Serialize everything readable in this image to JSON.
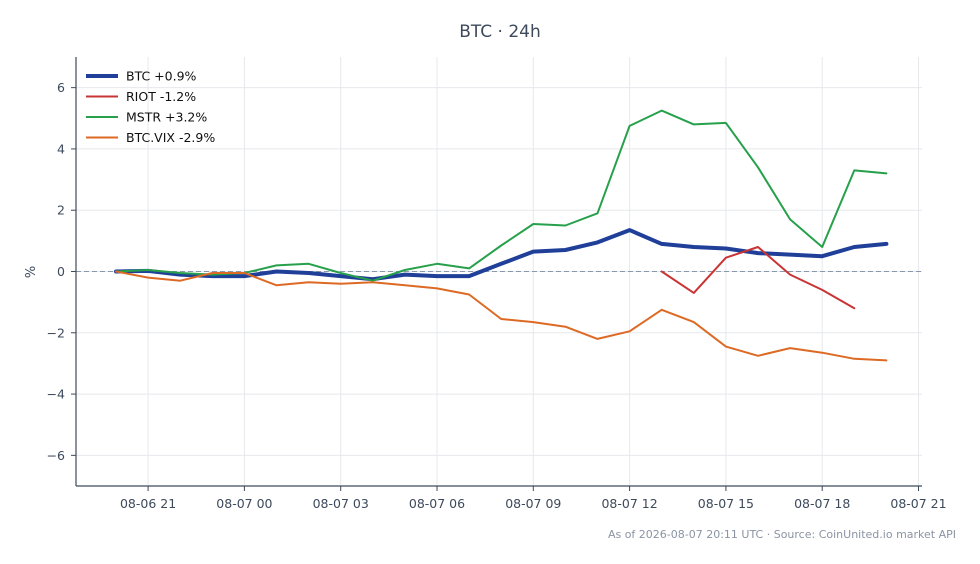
{
  "chart_data": {
    "type": "line",
    "title": "BTC · 24h",
    "ylabel": "%",
    "xlabel": "",
    "footer": "As of 2026-08-07 20:11 UTC · Source: CoinUnited.io market API",
    "x": [
      "08-06 20:00",
      "08-06 21:00",
      "08-06 22:00",
      "08-06 23:00",
      "08-07 00:00",
      "08-07 01:00",
      "08-07 02:00",
      "08-07 03:00",
      "08-07 04:00",
      "08-07 05:00",
      "08-07 06:00",
      "08-07 07:00",
      "08-07 08:00",
      "08-07 09:00",
      "08-07 10:00",
      "08-07 11:00",
      "08-07 12:00",
      "08-07 13:00",
      "08-07 14:00",
      "08-07 15:00",
      "08-07 16:00",
      "08-07 17:00",
      "08-07 18:00",
      "08-07 19:00",
      "08-07 20:00"
    ],
    "xticks": [
      "08-06 21",
      "08-07 00",
      "08-07 03",
      "08-07 06",
      "08-07 09",
      "08-07 12",
      "08-07 15",
      "08-07 18",
      "08-07 21"
    ],
    "ylim": [
      -7,
      7
    ],
    "yticks": [
      -6,
      -4,
      -2,
      0,
      2,
      4,
      6
    ],
    "ytick_labels": [
      "−6",
      "−4",
      "−2",
      "0",
      "2",
      "4",
      "6"
    ],
    "grid": true,
    "zero_line": true,
    "legend_position": "top-left",
    "series": [
      {
        "name": "BTC +0.9%",
        "color": "#1f3f99",
        "width": 4,
        "values": [
          0.0,
          0.02,
          -0.1,
          -0.15,
          -0.15,
          0.0,
          -0.05,
          -0.15,
          -0.25,
          -0.1,
          -0.15,
          -0.15,
          0.25,
          0.65,
          0.7,
          0.95,
          1.35,
          0.9,
          0.8,
          0.75,
          0.6,
          0.55,
          0.5,
          0.8,
          0.9
        ]
      },
      {
        "name": "RIOT -1.2%",
        "color": "#c93434",
        "width": 2,
        "values": [
          null,
          null,
          null,
          null,
          null,
          null,
          null,
          null,
          null,
          null,
          null,
          null,
          null,
          null,
          null,
          null,
          null,
          0.0,
          -0.7,
          0.45,
          0.8,
          -0.1,
          -0.6,
          -1.2,
          null
        ]
      },
      {
        "name": "MSTR +3.2%",
        "color": "#27a04b",
        "width": 2,
        "values": [
          0.0,
          0.05,
          -0.05,
          -0.1,
          -0.05,
          0.2,
          0.25,
          -0.05,
          -0.3,
          0.05,
          0.25,
          0.1,
          0.85,
          1.55,
          1.5,
          1.9,
          4.75,
          5.25,
          4.8,
          4.85,
          3.4,
          1.7,
          0.8,
          3.3,
          3.2
        ]
      },
      {
        "name": "BTC.VIX -2.9%",
        "color": "#dd6a24",
        "width": 2,
        "values": [
          0.0,
          -0.2,
          -0.3,
          -0.05,
          -0.05,
          -0.45,
          -0.35,
          -0.4,
          -0.35,
          -0.45,
          -0.55,
          -0.75,
          -1.55,
          -1.65,
          -1.8,
          -2.2,
          -1.95,
          -1.25,
          -1.65,
          -2.45,
          -2.75,
          -2.5,
          -2.65,
          -2.85,
          -2.9
        ]
      }
    ]
  }
}
